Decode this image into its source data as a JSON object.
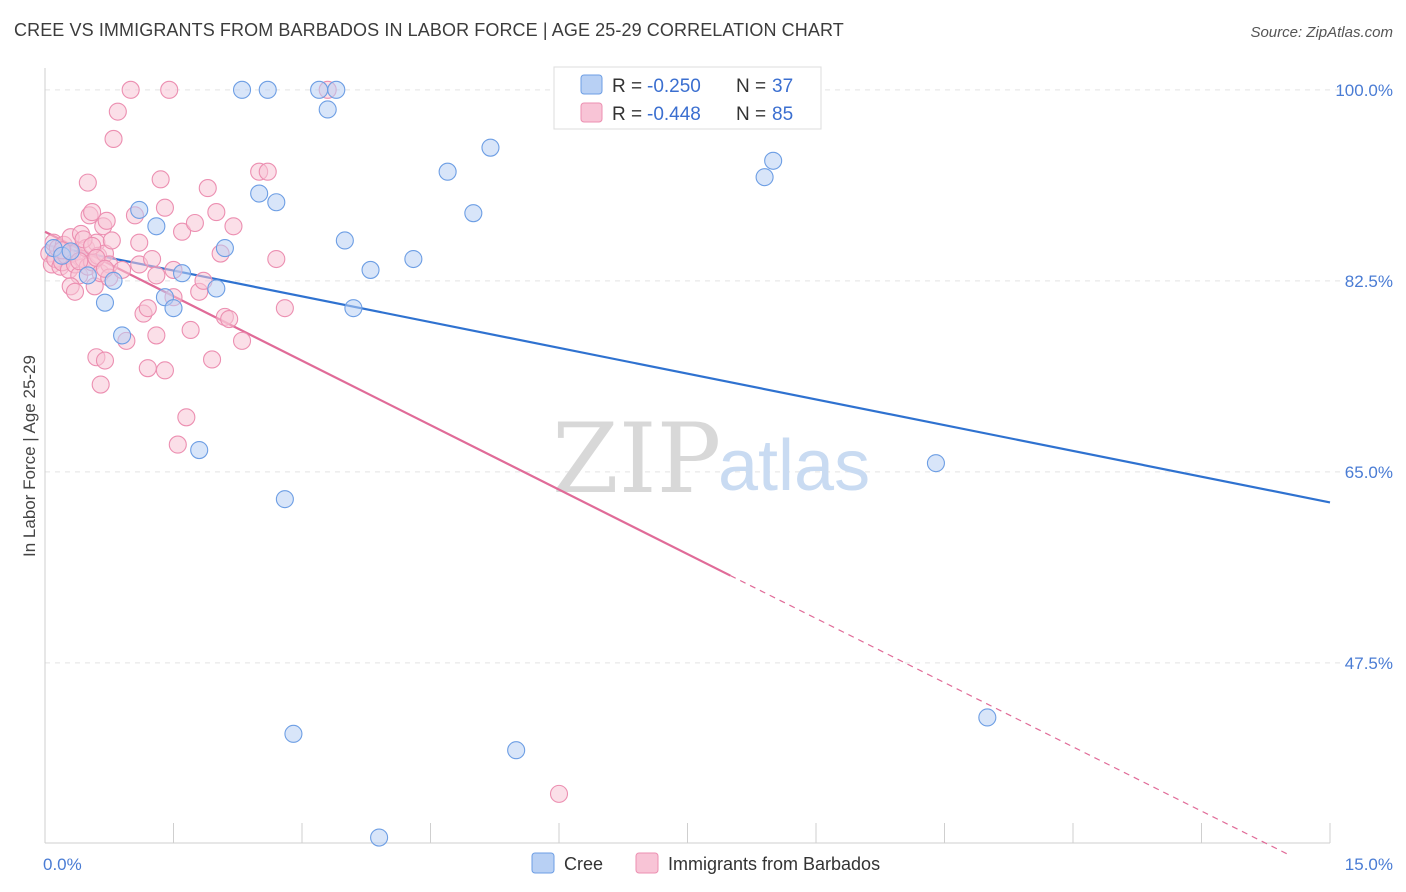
{
  "title": "CREE VS IMMIGRANTS FROM BARBADOS IN LABOR FORCE | AGE 25-29 CORRELATION CHART",
  "source": "Source: ZipAtlas.com",
  "watermark": {
    "zip": "ZIP",
    "atlas": "atlas"
  },
  "colors": {
    "cree_fill": "#b8d0f4",
    "cree_stroke": "#6d9ee4",
    "cree_line": "#2f72d0",
    "barbados_fill": "#f8c4d6",
    "barbados_stroke": "#ec8fb1",
    "barbados_line": "#e06b98",
    "grid": "#e3e3e3",
    "axis_label": "#4a7cd4"
  },
  "legend": {
    "r_label": "R = ",
    "n_label": "N = ",
    "rows": [
      {
        "r": "-0.250",
        "n": "37"
      },
      {
        "r": "-0.448",
        "n": "85"
      }
    ]
  },
  "chart_data": {
    "type": "scatter",
    "title": "CREE VS IMMIGRANTS FROM BARBADOS IN LABOR FORCE | AGE 25-29 CORRELATION CHART",
    "xlabel": "",
    "ylabel": "In Labor Force | Age 25-29",
    "xlim": [
      0,
      15
    ],
    "ylim": [
      31,
      102
    ],
    "x_tick_labels": [
      "0.0%",
      "15.0%"
    ],
    "y_ticks": [
      47.5,
      65.0,
      82.5,
      100.0
    ],
    "y_tick_labels": [
      "47.5%",
      "65.0%",
      "82.5%",
      "100.0%"
    ],
    "grid": true,
    "legend_position": "top-center",
    "series": [
      {
        "name": "Cree",
        "r": -0.25,
        "n": 37,
        "trend": {
          "x0": 0.0,
          "y0": 85.8,
          "x1": 15.0,
          "y1": 62.2
        },
        "points": [
          [
            0.1,
            85.5
          ],
          [
            0.2,
            84.8
          ],
          [
            0.3,
            85.2
          ],
          [
            0.5,
            83.0
          ],
          [
            0.7,
            80.5
          ],
          [
            0.8,
            82.5
          ],
          [
            0.9,
            77.5
          ],
          [
            1.1,
            89.0
          ],
          [
            1.3,
            87.5
          ],
          [
            1.4,
            81.0
          ],
          [
            1.5,
            80.0
          ],
          [
            1.6,
            83.2
          ],
          [
            1.8,
            67.0
          ],
          [
            2.0,
            81.8
          ],
          [
            2.1,
            85.5
          ],
          [
            2.3,
            100.0
          ],
          [
            2.5,
            90.5
          ],
          [
            2.6,
            100.0
          ],
          [
            2.7,
            89.7
          ],
          [
            2.8,
            62.5
          ],
          [
            2.9,
            41.0
          ],
          [
            3.2,
            100.0
          ],
          [
            3.3,
            98.2
          ],
          [
            3.4,
            100.0
          ],
          [
            3.5,
            86.2
          ],
          [
            3.6,
            80.0
          ],
          [
            3.8,
            83.5
          ],
          [
            3.9,
            31.5
          ],
          [
            4.3,
            84.5
          ],
          [
            4.7,
            92.5
          ],
          [
            5.0,
            88.7
          ],
          [
            5.2,
            94.7
          ],
          [
            5.5,
            39.5
          ],
          [
            8.4,
            92.0
          ],
          [
            8.5,
            93.5
          ],
          [
            10.4,
            65.8
          ],
          [
            11.0,
            42.5
          ]
        ]
      },
      {
        "name": "Immigrants from Barbados",
        "r": -0.448,
        "n": 85,
        "trend": {
          "x0": 0.0,
          "y0": 87.0,
          "x1": 8.0,
          "y1": 55.5
        },
        "trend_dashed": {
          "x0": 8.0,
          "y0": 55.5,
          "x1": 14.5,
          "y1": 30.0
        },
        "points": [
          [
            0.05,
            85.0
          ],
          [
            0.08,
            84.0
          ],
          [
            0.1,
            86.0
          ],
          [
            0.12,
            84.5
          ],
          [
            0.15,
            85.5
          ],
          [
            0.18,
            83.8
          ],
          [
            0.2,
            84.2
          ],
          [
            0.22,
            85.8
          ],
          [
            0.25,
            84.8
          ],
          [
            0.28,
            83.5
          ],
          [
            0.3,
            86.5
          ],
          [
            0.32,
            85.0
          ],
          [
            0.35,
            84.0
          ],
          [
            0.38,
            85.2
          ],
          [
            0.4,
            83.0
          ],
          [
            0.42,
            86.8
          ],
          [
            0.45,
            84.5
          ],
          [
            0.48,
            85.5
          ],
          [
            0.5,
            83.8
          ],
          [
            0.52,
            88.5
          ],
          [
            0.55,
            84.2
          ],
          [
            0.58,
            82.0
          ],
          [
            0.6,
            86.0
          ],
          [
            0.62,
            84.8
          ],
          [
            0.65,
            83.2
          ],
          [
            0.68,
            87.5
          ],
          [
            0.7,
            85.0
          ],
          [
            0.72,
            88.0
          ],
          [
            0.75,
            84.0
          ],
          [
            0.78,
            86.2
          ],
          [
            0.3,
            82.0
          ],
          [
            0.35,
            81.5
          ],
          [
            0.5,
            91.5
          ],
          [
            0.55,
            88.8
          ],
          [
            0.6,
            75.5
          ],
          [
            0.65,
            73.0
          ],
          [
            0.7,
            75.2
          ],
          [
            0.75,
            82.8
          ],
          [
            0.8,
            95.5
          ],
          [
            0.85,
            98.0
          ],
          [
            0.9,
            83.5
          ],
          [
            0.95,
            77.0
          ],
          [
            1.0,
            100.0
          ],
          [
            1.05,
            88.5
          ],
          [
            1.1,
            86.0
          ],
          [
            1.1,
            84.0
          ],
          [
            1.15,
            79.5
          ],
          [
            1.2,
            80.0
          ],
          [
            1.2,
            74.5
          ],
          [
            1.25,
            84.5
          ],
          [
            1.3,
            83.0
          ],
          [
            1.3,
            77.5
          ],
          [
            1.35,
            91.8
          ],
          [
            1.4,
            89.2
          ],
          [
            1.4,
            74.3
          ],
          [
            1.45,
            100.0
          ],
          [
            1.5,
            81.0
          ],
          [
            1.5,
            83.5
          ],
          [
            1.55,
            67.5
          ],
          [
            1.6,
            87.0
          ],
          [
            1.65,
            70.0
          ],
          [
            1.7,
            78.0
          ],
          [
            1.75,
            87.8
          ],
          [
            1.8,
            81.5
          ],
          [
            1.85,
            82.5
          ],
          [
            1.9,
            91.0
          ],
          [
            1.95,
            75.3
          ],
          [
            2.0,
            88.8
          ],
          [
            2.05,
            85.0
          ],
          [
            2.1,
            79.2
          ],
          [
            2.15,
            79.0
          ],
          [
            2.2,
            87.5
          ],
          [
            2.3,
            77.0
          ],
          [
            2.5,
            92.5
          ],
          [
            2.6,
            92.5
          ],
          [
            2.7,
            84.5
          ],
          [
            2.8,
            80.0
          ],
          [
            3.3,
            100.0
          ],
          [
            0.2,
            85.3
          ],
          [
            0.4,
            84.3
          ],
          [
            0.45,
            86.3
          ],
          [
            0.55,
            85.7
          ],
          [
            0.6,
            84.6
          ],
          [
            0.7,
            83.6
          ],
          [
            6.0,
            35.5
          ]
        ]
      }
    ]
  },
  "bottom_legend": [
    {
      "label": "Cree"
    },
    {
      "label": "Immigrants from Barbados"
    }
  ]
}
